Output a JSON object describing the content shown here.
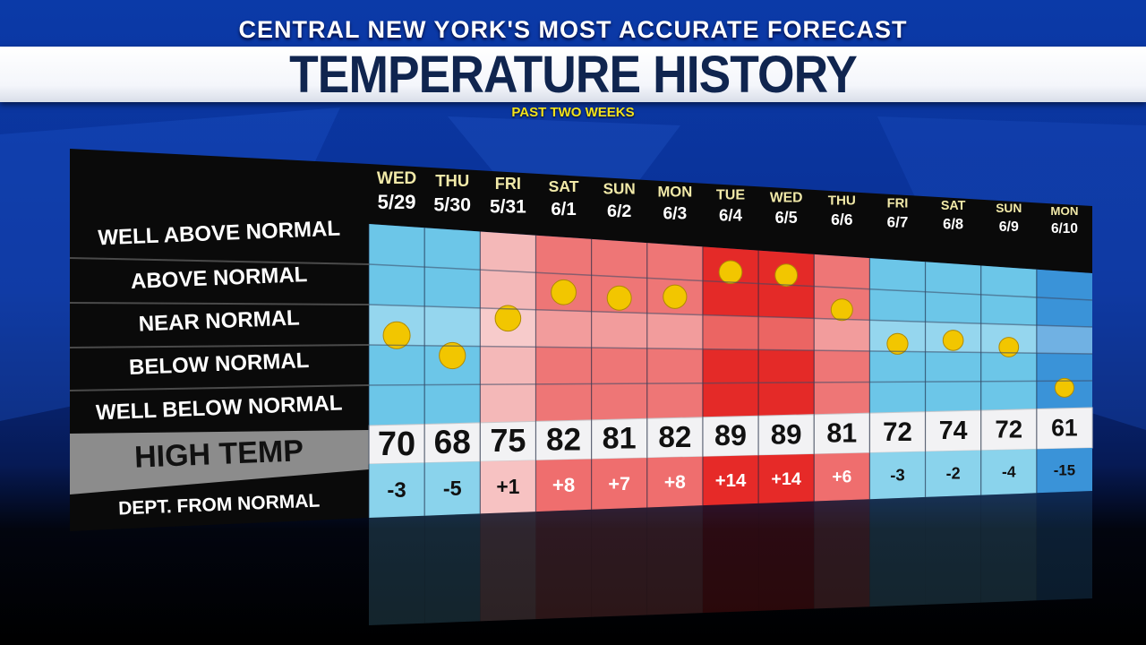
{
  "header": {
    "banner": "CENTRAL NEW YORK'S MOST ACCURATE FORECAST",
    "title": "TEMPERATURE HISTORY",
    "subtitle": "PAST TWO WEEKS"
  },
  "colors": {
    "well_below": "#3a93d8",
    "below": "#6cc6e8",
    "near": "#f4b8b8",
    "above": "#ee7676",
    "well_above": "#e42a28",
    "dot": "#f2c600",
    "label_panel": "#0a0a0a"
  },
  "chart_data": {
    "type": "table",
    "title": "TEMPERATURE HISTORY",
    "subtitle": "PAST TWO WEEKS",
    "row_labels": [
      "WELL ABOVE NORMAL",
      "ABOVE NORMAL",
      "NEAR NORMAL",
      "BELOW NORMAL",
      "WELL BELOW NORMAL",
      "HIGH TEMP",
      "DEPT. FROM NORMAL"
    ],
    "days": [
      {
        "dow": "WED",
        "date": "5/29",
        "high": 70,
        "dept": "-3",
        "category": "below",
        "dot_level": 0.45
      },
      {
        "dow": "THU",
        "date": "5/30",
        "high": 68,
        "dept": "-5",
        "category": "below",
        "dot_level": 0.35
      },
      {
        "dow": "FRI",
        "date": "5/31",
        "high": 75,
        "dept": "+1",
        "category": "near",
        "dot_level": 0.55
      },
      {
        "dow": "SAT",
        "date": "6/1",
        "high": 82,
        "dept": "+8",
        "category": "above",
        "dot_level": 0.7
      },
      {
        "dow": "SUN",
        "date": "6/2",
        "high": 81,
        "dept": "+7",
        "category": "above",
        "dot_level": 0.68
      },
      {
        "dow": "MON",
        "date": "6/3",
        "high": 82,
        "dept": "+8",
        "category": "above",
        "dot_level": 0.7
      },
      {
        "dow": "TUE",
        "date": "6/4",
        "high": 89,
        "dept": "+14",
        "category": "well_above",
        "dot_level": 0.86
      },
      {
        "dow": "WED",
        "date": "6/5",
        "high": 89,
        "dept": "+14",
        "category": "well_above",
        "dot_level": 0.86
      },
      {
        "dow": "THU",
        "date": "6/6",
        "high": 81,
        "dept": "+6",
        "category": "above",
        "dot_level": 0.66
      },
      {
        "dow": "FRI",
        "date": "6/7",
        "high": 72,
        "dept": "-3",
        "category": "below",
        "dot_level": 0.45
      },
      {
        "dow": "SAT",
        "date": "6/8",
        "high": 74,
        "dept": "-2",
        "category": "below",
        "dot_level": 0.48
      },
      {
        "dow": "SUN",
        "date": "6/9",
        "high": 72,
        "dept": "-4",
        "category": "below",
        "dot_level": 0.44
      },
      {
        "dow": "MON",
        "date": "6/10",
        "high": 61,
        "dept": "-15",
        "category": "well_below",
        "dot_level": 0.15
      }
    ]
  }
}
